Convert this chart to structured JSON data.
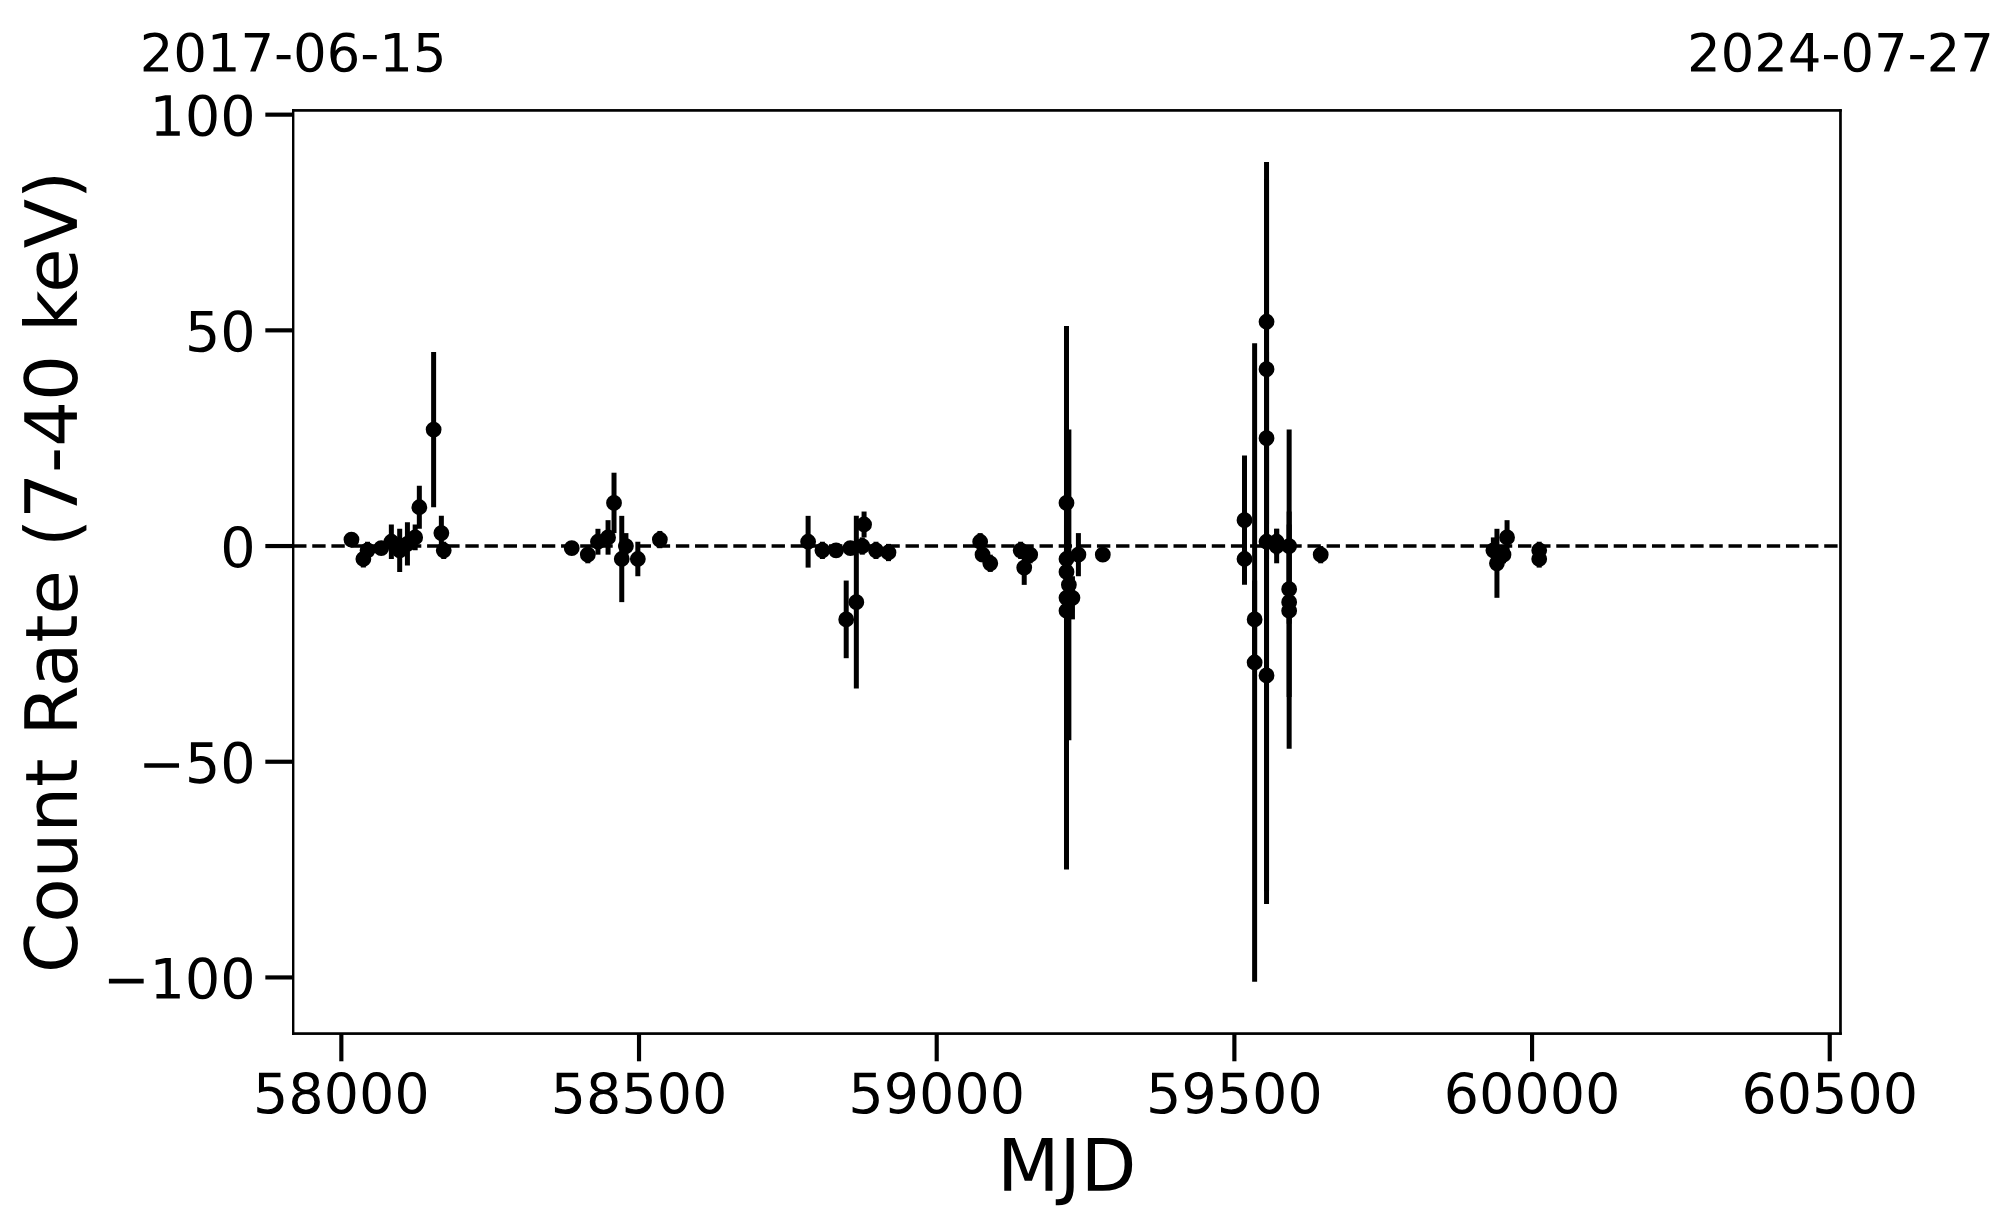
{
  "chart_data": {
    "type": "scatter",
    "xlabel": "MJD",
    "ylabel": "Count Rate (7-40 keV)",
    "xlim": [
      57919,
      60518
    ],
    "xticks": [
      58000,
      58500,
      59000,
      59500,
      60000,
      60500
    ],
    "ylim": [
      -113,
      101
    ],
    "yticks": [
      -100,
      -50,
      0,
      50,
      100
    ],
    "x2lim": [
      "2017-06-15",
      "2024-07-27"
    ],
    "x2ticks": [
      "2017-06-15",
      "2024-07-27"
    ],
    "marker": "circle",
    "grid": false,
    "legend": false,
    "ref_lines": [
      {
        "axis": "y",
        "value": 0,
        "color": "#000000",
        "line_style": "dashed"
      }
    ],
    "series": [
      {
        "color": "#000000",
        "x": [
          58017,
          58037,
          58044,
          58067,
          58084,
          58098,
          58111,
          58124,
          58131,
          58155,
          58168,
          58172,
          58387,
          58414,
          58431,
          58448,
          58458,
          58471,
          58478,
          58498,
          58535,
          58784,
          58808,
          58831,
          58855,
          58875,
          58848,
          58865,
          58878,
          58898,
          58919,
          59073,
          59077,
          59090,
          59141,
          59147,
          59157,
          59218,
          59218,
          59218,
          59218,
          59218,
          59222,
          59228,
          59238,
          59279,
          59517,
          59517,
          59534,
          59534,
          59554,
          59554,
          59554,
          59554,
          59554,
          59571,
          59571,
          59592,
          59592,
          59592,
          59592,
          59645,
          59935,
          59941,
          59952,
          59958,
          60012,
          60012
        ],
        "values": [
          1.5,
          -3,
          -1,
          -0.5,
          1,
          -1,
          0.5,
          2,
          9,
          27,
          3,
          -1,
          -0.5,
          -2,
          1,
          2,
          10,
          -3,
          0,
          -3,
          1.5,
          1,
          -1,
          -1,
          -0.5,
          0,
          -17,
          -13,
          5,
          -1,
          -1.5,
          1,
          -2,
          -4,
          -1,
          -5,
          -2,
          10,
          -12,
          -6,
          -15,
          -3,
          -9,
          -12,
          -2,
          -2,
          6,
          -3,
          -17,
          -27,
          52,
          41,
          25,
          1,
          -30,
          1,
          0,
          -10,
          -13,
          -15,
          0,
          -2,
          -1,
          -4,
          -2,
          2,
          -1,
          -3
        ],
        "errors": [
          1,
          2,
          2,
          1,
          4,
          5,
          5,
          3,
          5,
          18,
          4,
          2,
          1,
          2,
          3,
          4,
          7,
          10,
          3,
          4,
          2,
          6,
          2,
          1,
          1,
          2,
          9,
          20,
          3,
          2,
          2,
          2,
          1,
          2,
          2,
          4,
          2,
          18,
          63,
          10,
          20,
          15,
          36,
          5,
          5,
          1,
          15,
          5,
          9,
          74,
          37,
          44,
          20,
          84,
          50,
          3,
          4,
          37,
          5,
          20,
          8,
          2,
          3,
          8,
          2,
          4,
          2,
          2
        ]
      }
    ]
  }
}
